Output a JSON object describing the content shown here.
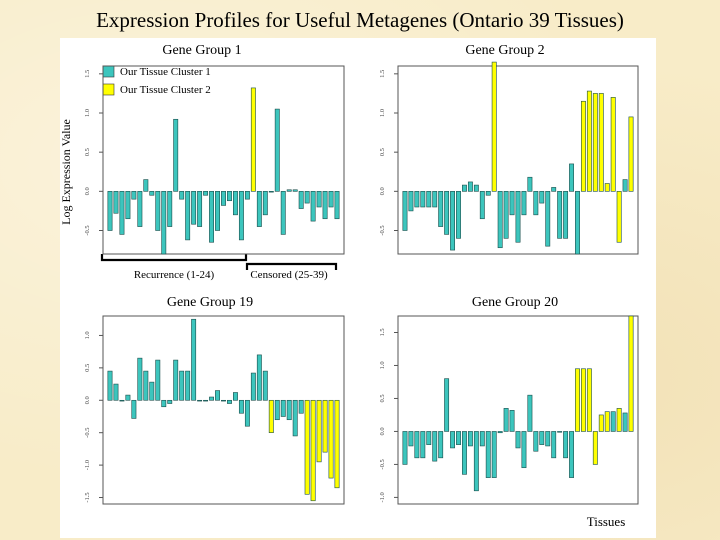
{
  "slide_title": "Expression Profiles for Useful Metagenes (Ontario 39 Tissues)",
  "ylabel": "Log Expression Value",
  "xlabel": "Tissues",
  "legend": {
    "placement": "top-left of Gene Group 1 panel",
    "items": [
      {
        "label": "Our Tissue Cluster 1",
        "color": "#3cc5bd"
      },
      {
        "label": "Our Tissue Cluster 2",
        "color": "#ffff00"
      }
    ]
  },
  "brackets": {
    "recurrence": "Recurrence (1-24)",
    "censored": "Censored (25-39)"
  },
  "colors": {
    "cluster1": "#3cc5bd",
    "cluster2": "#ffff00",
    "bar_outline": "#1a4d4a",
    "axis": "#555555"
  },
  "chart_data": [
    {
      "type": "bar",
      "title": "Gene Group 1",
      "ylim": [
        -0.8,
        1.6
      ],
      "yticks": [
        -0.5,
        0.0,
        0.5,
        1.0,
        1.5
      ],
      "ytick_labels": [
        "-0.5",
        "0.0",
        "0.5",
        "1.0",
        "1.5"
      ],
      "values": [
        -0.5,
        -0.28,
        -0.55,
        -0.35,
        -0.1,
        -0.45,
        0.15,
        -0.05,
        -0.5,
        -0.8,
        -0.45,
        0.92,
        -0.1,
        -0.62,
        -0.42,
        -0.45,
        -0.05,
        -0.65,
        -0.5,
        -0.18,
        -0.12,
        -0.3,
        -0.62,
        -0.1,
        1.32,
        -0.45,
        -0.3,
        0.0,
        1.05,
        -0.55,
        0.02,
        0.02,
        -0.22,
        -0.15,
        -0.38,
        -0.2,
        -0.35,
        -0.2,
        -0.35
      ],
      "clusters": [
        1,
        1,
        1,
        1,
        1,
        1,
        1,
        1,
        1,
        1,
        1,
        1,
        1,
        1,
        1,
        1,
        1,
        1,
        1,
        1,
        1,
        1,
        1,
        1,
        2,
        1,
        1,
        1,
        1,
        1,
        1,
        1,
        1,
        1,
        1,
        1,
        1,
        1,
        1
      ]
    },
    {
      "type": "bar",
      "title": "Gene Group 2",
      "ylim": [
        -0.8,
        1.6
      ],
      "yticks": [
        -0.5,
        0.0,
        0.5,
        1.0,
        1.5
      ],
      "ytick_labels": [
        "-0.5",
        "0.0",
        "0.5",
        "1.0",
        "1.5"
      ],
      "values": [
        -0.5,
        -0.25,
        -0.2,
        -0.2,
        -0.2,
        -0.2,
        -0.45,
        -0.55,
        -0.75,
        -0.6,
        0.08,
        0.12,
        0.08,
        -0.35,
        -0.05,
        1.65,
        -0.72,
        -0.6,
        -0.3,
        -0.65,
        -0.3,
        0.18,
        -0.3,
        -0.15,
        -0.7,
        0.05,
        -0.6,
        -0.6,
        0.35,
        -0.8,
        1.15,
        1.28,
        1.25,
        1.25,
        0.1,
        1.2,
        -0.65,
        0.15,
        0.95
      ],
      "clusters": [
        1,
        1,
        1,
        1,
        1,
        1,
        1,
        1,
        1,
        1,
        1,
        1,
        1,
        1,
        1,
        2,
        1,
        1,
        1,
        1,
        1,
        1,
        1,
        1,
        1,
        1,
        1,
        1,
        1,
        1,
        2,
        2,
        2,
        2,
        2,
        2,
        2,
        1,
        2
      ]
    },
    {
      "type": "bar",
      "title": "Gene Group 19",
      "ylim": [
        -1.6,
        1.3
      ],
      "yticks": [
        -1.5,
        -1.0,
        -0.5,
        0.0,
        0.5,
        1.0
      ],
      "ytick_labels": [
        "-1.5",
        "-1.0",
        "-0.5",
        "0.0",
        "0.5",
        "1.0"
      ],
      "values": [
        0.45,
        0.25,
        0.0,
        0.08,
        -0.28,
        0.65,
        0.45,
        0.28,
        0.62,
        -0.1,
        -0.05,
        0.62,
        0.45,
        0.45,
        1.25,
        0.0,
        0.0,
        0.05,
        0.15,
        0.0,
        -0.05,
        0.12,
        -0.2,
        -0.4,
        0.42,
        0.7,
        0.45,
        -0.5,
        -0.3,
        -0.25,
        -0.3,
        -0.55,
        -0.2,
        -1.45,
        -1.55,
        -0.95,
        -0.8,
        -1.2,
        -1.35
      ],
      "clusters": [
        1,
        1,
        1,
        1,
        1,
        1,
        1,
        1,
        1,
        1,
        1,
        1,
        1,
        1,
        1,
        1,
        1,
        1,
        1,
        1,
        1,
        1,
        1,
        1,
        1,
        1,
        1,
        2,
        1,
        1,
        1,
        1,
        1,
        2,
        2,
        2,
        2,
        2,
        2
      ]
    },
    {
      "type": "bar",
      "title": "Gene Group 20",
      "ylim": [
        -1.1,
        1.75
      ],
      "yticks": [
        -1.0,
        -0.5,
        0.0,
        0.5,
        1.0,
        1.5
      ],
      "ytick_labels": [
        "-1.0",
        "-0.5",
        "0.0",
        "0.5",
        "1.0",
        "1.5"
      ],
      "values": [
        -0.5,
        -0.22,
        -0.4,
        -0.4,
        -0.2,
        -0.45,
        -0.4,
        0.8,
        -0.25,
        -0.2,
        -0.65,
        -0.22,
        -0.9,
        -0.22,
        -0.7,
        -0.7,
        -0.02,
        0.35,
        0.32,
        -0.25,
        -0.55,
        0.55,
        -0.3,
        -0.2,
        -0.22,
        -0.4,
        0.0,
        -0.4,
        -0.7,
        0.95,
        0.95,
        0.95,
        -0.5,
        0.25,
        0.3,
        0.3,
        0.35,
        0.28,
        1.75
      ],
      "clusters": [
        1,
        1,
        1,
        1,
        1,
        1,
        1,
        1,
        1,
        1,
        1,
        1,
        1,
        1,
        1,
        1,
        1,
        1,
        1,
        1,
        1,
        1,
        1,
        1,
        1,
        1,
        1,
        1,
        1,
        2,
        2,
        2,
        2,
        2,
        2,
        1,
        2,
        1,
        2
      ]
    }
  ]
}
